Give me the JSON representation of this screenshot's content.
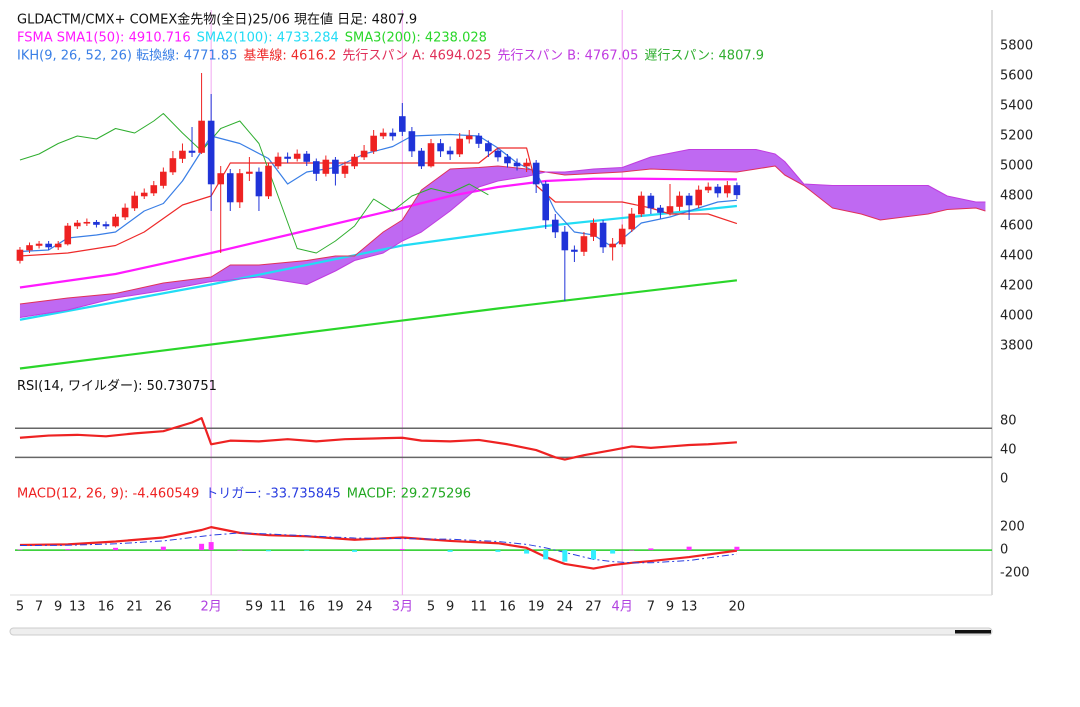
{
  "chart_data": [
    {
      "type": "candlestick",
      "title": "GLDACTM/CMX+ COMEX金先物(全日)25/06  現在値 日足: 4807.9",
      "xlim": [
        -1,
        102
      ],
      "ylim": [
        3600,
        6040
      ],
      "yticks": [
        3800,
        4000,
        4200,
        4400,
        4600,
        4800,
        5000,
        5200,
        5400,
        5600,
        5800
      ],
      "up_color": "#ee2222",
      "down_color": "#1f33d8",
      "vlines": [
        20,
        40,
        63
      ],
      "vline_color": "#f2a6f2",
      "cloud": {
        "between": [
          5,
          6
        ],
        "color": "#b44ff0"
      },
      "x": [
        0,
        1,
        2,
        3,
        4,
        5,
        6,
        7,
        8,
        9,
        10,
        11,
        12,
        13,
        14,
        15,
        16,
        17,
        18,
        19,
        20,
        21,
        22,
        23,
        24,
        25,
        26,
        27,
        28,
        29,
        30,
        31,
        32,
        33,
        34,
        35,
        36,
        37,
        38,
        39,
        40,
        41,
        42,
        43,
        44,
        45,
        46,
        47,
        48,
        49,
        50,
        51,
        52,
        53,
        54,
        55,
        56,
        57,
        58,
        59,
        60,
        61,
        62,
        63,
        64,
        65,
        66,
        67,
        68,
        69,
        70,
        71,
        72,
        73,
        74,
        75
      ],
      "open": [
        4370,
        4440,
        4470,
        4480,
        4460,
        4480,
        4600,
        4620,
        4625,
        4610,
        4600,
        4660,
        4720,
        4800,
        4820,
        4870,
        4960,
        5050,
        5100,
        5090,
        5300,
        4880,
        4950,
        4760,
        4950,
        4960,
        4800,
        5000,
        5060,
        5050,
        5080,
        5030,
        4950,
        5040,
        4950,
        5000,
        5060,
        5100,
        5200,
        5220,
        5330,
        5230,
        5100,
        5000,
        5150,
        5100,
        5080,
        5180,
        5200,
        5150,
        5100,
        5060,
        5020,
        5000,
        5020,
        4880,
        4640,
        4560,
        4440,
        4430,
        4530,
        4620,
        4460,
        4480,
        4580,
        4680,
        4800,
        4720,
        4690,
        4730,
        4800,
        4740,
        4840,
        4860,
        4820,
        4870
      ],
      "high": [
        4460,
        4490,
        4500,
        4500,
        4500,
        4620,
        4640,
        4650,
        4640,
        4630,
        4680,
        4750,
        4830,
        4850,
        4900,
        4990,
        5100,
        5150,
        5260,
        5620,
        5480,
        5000,
        4980,
        4980,
        5060,
        4990,
        5020,
        5090,
        5090,
        5110,
        5100,
        5050,
        5070,
        5060,
        5030,
        5080,
        5140,
        5240,
        5250,
        5250,
        5420,
        5260,
        5120,
        5180,
        5180,
        5130,
        5220,
        5240,
        5220,
        5170,
        5120,
        5080,
        5050,
        5050,
        5040,
        4900,
        4680,
        4600,
        4470,
        4560,
        4650,
        4640,
        4520,
        4610,
        4720,
        4830,
        4820,
        4740,
        4880,
        4830,
        4820,
        4870,
        4890,
        4880,
        4900,
        4890
      ],
      "low": [
        4350,
        4420,
        4450,
        4440,
        4440,
        4470,
        4580,
        4600,
        4590,
        4580,
        4590,
        4640,
        4700,
        4780,
        4800,
        4850,
        4940,
        5020,
        5060,
        5080,
        4700,
        4420,
        4700,
        4720,
        4900,
        4700,
        4780,
        4980,
        5020,
        5030,
        5000,
        4900,
        4930,
        4870,
        4920,
        4980,
        5040,
        5080,
        5180,
        5170,
        5200,
        5060,
        4980,
        4990,
        5060,
        5040,
        5060,
        5150,
        5120,
        5060,
        5030,
        4990,
        4970,
        4960,
        4820,
        4580,
        4520,
        4100,
        4360,
        4400,
        4500,
        4420,
        4370,
        4460,
        4560,
        4660,
        4680,
        4650,
        4670,
        4700,
        4640,
        4720,
        4820,
        4790,
        4790,
        4780
      ],
      "close": [
        4440,
        4470,
        4480,
        4460,
        4480,
        4600,
        4620,
        4625,
        4610,
        4600,
        4660,
        4720,
        4800,
        4820,
        4870,
        4960,
        5050,
        5100,
        5090,
        5300,
        4880,
        4950,
        4760,
        4950,
        4960,
        4800,
        5000,
        5060,
        5050,
        5080,
        5030,
        4950,
        5040,
        4950,
        5000,
        5060,
        5100,
        5200,
        5220,
        5200,
        5230,
        5100,
        5000,
        5150,
        5100,
        5080,
        5180,
        5200,
        5150,
        5100,
        5060,
        5020,
        5000,
        5020,
        4880,
        4640,
        4560,
        4440,
        4430,
        4530,
        4620,
        4460,
        4480,
        4580,
        4680,
        4800,
        4720,
        4690,
        4730,
        4800,
        4740,
        4840,
        4860,
        4820,
        4870,
        4807.9
      ],
      "series": [
        {
          "name": "FSMA SMA1(50): 4910.716",
          "color": "#ff1aff",
          "width": 2.2,
          "x": [
            0,
            10,
            20,
            30,
            40,
            45,
            50,
            55,
            60,
            65,
            70,
            75
          ],
          "values": [
            4190,
            4280,
            4420,
            4570,
            4720,
            4800,
            4860,
            4900,
            4915,
            4915,
            4912,
            4910.716
          ]
        },
        {
          "name": "SMA2(100): 4733.284",
          "color": "#22dcf5",
          "width": 2.2,
          "x": [
            0,
            20,
            40,
            55,
            75
          ],
          "values": [
            3975,
            4210,
            4470,
            4600,
            4733.284
          ]
        },
        {
          "name": "SMA3(200): 4238.028",
          "color": "#2ad62a",
          "width": 2.2,
          "x": [
            0,
            25,
            50,
            75
          ],
          "values": [
            3650,
            3850,
            4050,
            4238.028
          ]
        },
        {
          "name": "IKH(9, 26, 52, 26) 転換線: 4771.85",
          "color": "#3a7fe6",
          "width": 1.2,
          "x": [
            0,
            3,
            5,
            8,
            10,
            13,
            15,
            17,
            18,
            20,
            23,
            26,
            28,
            30,
            33,
            36,
            39,
            41,
            45,
            48,
            50,
            52,
            54,
            56,
            58,
            60,
            62,
            65,
            68,
            70,
            73,
            75
          ],
          "values": [
            4430,
            4440,
            4520,
            4540,
            4560,
            4700,
            4750,
            4900,
            5000,
            5200,
            5150,
            5050,
            4880,
            4960,
            4990,
            5080,
            5130,
            5200,
            5210,
            5200,
            5120,
            5020,
            4960,
            4700,
            4560,
            4540,
            4460,
            4620,
            4660,
            4700,
            4760,
            4771.85
          ]
        },
        {
          "name": "基準線: 4616.2",
          "color": "#ee2a2a",
          "width": 1.2,
          "x": [
            0,
            5,
            10,
            13,
            17,
            20,
            22,
            30,
            40,
            48,
            50,
            53,
            54,
            56,
            63,
            66,
            68,
            72,
            75
          ],
          "values": [
            4400,
            4420,
            4470,
            4560,
            4740,
            4800,
            5020,
            5020,
            5020,
            5020,
            5120,
            5120,
            4870,
            4760,
            4760,
            4720,
            4680,
            4680,
            4616.2
          ]
        },
        {
          "name": "先行スパン A: 4694.025",
          "color": "#e0305a",
          "width": 1,
          "x": [
            0,
            5,
            10,
            15,
            20,
            22,
            25,
            30,
            33,
            35,
            38,
            40,
            42,
            45,
            48,
            50,
            53,
            55,
            57,
            60,
            63,
            66,
            70,
            75,
            77,
            79,
            80,
            82,
            85,
            88,
            90,
            95,
            97,
            100,
            101
          ],
          "values": [
            4080,
            4120,
            4150,
            4220,
            4260,
            4340,
            4340,
            4370,
            4400,
            4400,
            4560,
            4640,
            4840,
            4980,
            4990,
            5000,
            4980,
            4960,
            4940,
            4950,
            4960,
            4980,
            4970,
            4960,
            4980,
            5000,
            4940,
            4870,
            4720,
            4680,
            4640,
            4680,
            4710,
            4720,
            4700
          ]
        },
        {
          "name": "先行スパン B: 4767.05",
          "color": "#c03ce0",
          "width": 1,
          "x": [
            0,
            5,
            10,
            15,
            20,
            22,
            25,
            30,
            33,
            35,
            38,
            40,
            42,
            45,
            48,
            50,
            53,
            55,
            57,
            60,
            63,
            66,
            70,
            75,
            77,
            79,
            80,
            82,
            85,
            88,
            90,
            95,
            97,
            100,
            101
          ],
          "values": [
            3990,
            4040,
            4120,
            4170,
            4230,
            4240,
            4260,
            4210,
            4300,
            4370,
            4420,
            4500,
            4560,
            4700,
            4860,
            4900,
            4930,
            4960,
            4960,
            4980,
            4990,
            5060,
            5110,
            5110,
            5110,
            5080,
            5030,
            4880,
            4870,
            4870,
            4870,
            4870,
            4800,
            4760,
            4760
          ]
        },
        {
          "name": "遅行スパン: 4807.9",
          "color": "#2fae2f",
          "width": 1,
          "x": [
            0,
            2,
            4,
            6,
            8,
            10,
            12,
            14,
            15,
            17,
            19,
            21,
            23,
            25,
            27,
            29,
            31,
            33,
            35,
            37,
            39,
            41,
            43,
            45,
            47,
            49
          ],
          "values": [
            5040,
            5080,
            5150,
            5200,
            5180,
            5250,
            5220,
            5300,
            5350,
            5220,
            5100,
            5250,
            5300,
            5150,
            4800,
            4450,
            4420,
            4500,
            4600,
            4780,
            4700,
            4800,
            4850,
            4820,
            4880,
            4807.9
          ]
        }
      ]
    },
    {
      "type": "line",
      "title": "RSI(14, ワイルダー): 50.730751",
      "xlim": [
        -1,
        102
      ],
      "ylim": [
        -15,
        140
      ],
      "yticks": [
        0,
        40,
        80
      ],
      "hlines": [
        70,
        30
      ],
      "hline_color": "#666666",
      "color": "#ee2222",
      "x": [
        0,
        3,
        6,
        9,
        12,
        15,
        18,
        19,
        20,
        22,
        25,
        28,
        31,
        34,
        37,
        40,
        42,
        45,
        48,
        51,
        54,
        56,
        57,
        59,
        62,
        64,
        66,
        68,
        70,
        72,
        75
      ],
      "values": [
        57,
        60,
        61,
        59,
        63,
        66,
        78,
        84,
        48,
        53,
        52,
        55,
        52,
        55,
        56,
        57,
        53,
        52,
        54,
        48,
        40,
        30,
        27,
        33,
        40,
        45,
        43,
        45,
        47,
        48,
        50.730751
      ]
    },
    {
      "type": "line",
      "xlim": [
        -1,
        102
      ],
      "ylim": [
        -390,
        540
      ],
      "yticks": [
        -200,
        0,
        200
      ],
      "hlines": [
        0
      ],
      "hline_color": "#22cc22",
      "xticks": [
        {
          "value": 0,
          "label": "5"
        },
        {
          "value": 2,
          "label": "7"
        },
        {
          "value": 4,
          "label": "9"
        },
        {
          "value": 6,
          "label": "13"
        },
        {
          "value": 9,
          "label": "16"
        },
        {
          "value": 12,
          "label": "21"
        },
        {
          "value": 15,
          "label": "26"
        },
        {
          "value": 20,
          "label": "2月",
          "color": "#b040e0"
        },
        {
          "value": 24,
          "label": "5"
        },
        {
          "value": 25,
          "label": "9"
        },
        {
          "value": 27,
          "label": "11"
        },
        {
          "value": 30,
          "label": "16"
        },
        {
          "value": 33,
          "label": "19"
        },
        {
          "value": 36,
          "label": "24"
        },
        {
          "value": 40,
          "label": "3月",
          "color": "#b040e0"
        },
        {
          "value": 43,
          "label": "5"
        },
        {
          "value": 45,
          "label": "9"
        },
        {
          "value": 48,
          "label": "11"
        },
        {
          "value": 51,
          "label": "16"
        },
        {
          "value": 54,
          "label": "19"
        },
        {
          "value": 57,
          "label": "24"
        },
        {
          "value": 60,
          "label": "27"
        },
        {
          "value": 63,
          "label": "4月",
          "color": "#b040e0"
        },
        {
          "value": 66,
          "label": "7"
        },
        {
          "value": 68,
          "label": "9"
        },
        {
          "value": 70,
          "label": "13"
        },
        {
          "value": 75,
          "label": "20"
        }
      ],
      "series": [
        {
          "name": "MACD(12, 26, 9): -4.460549",
          "color": "#ee2222",
          "width": 2.2,
          "x": [
            0,
            5,
            10,
            15,
            19,
            20,
            23,
            26,
            30,
            35,
            40,
            45,
            50,
            53,
            55,
            57,
            60,
            62,
            64,
            66,
            70,
            75
          ],
          "values": [
            45,
            50,
            75,
            110,
            175,
            200,
            150,
            130,
            120,
            90,
            110,
            80,
            60,
            20,
            -60,
            -120,
            -160,
            -130,
            -110,
            -95,
            -60,
            -4.460549
          ]
        },
        {
          "name": "トリガー: -33.735845",
          "color": "#2a3ee0",
          "width": 1,
          "style": "dashdot",
          "x": [
            0,
            5,
            10,
            15,
            19,
            20,
            23,
            26,
            30,
            35,
            40,
            45,
            50,
            53,
            55,
            57,
            60,
            62,
            64,
            66,
            70,
            75
          ],
          "values": [
            40,
            42,
            55,
            80,
            120,
            130,
            150,
            140,
            125,
            105,
            100,
            95,
            75,
            50,
            20,
            -20,
            -80,
            -100,
            -110,
            -110,
            -90,
            -33.735845
          ]
        },
        {
          "name": "MACDF: 29.275296",
          "color": "#22a822",
          "type": "bar",
          "pos_color": "#ff33ff",
          "neg_color": "#33eeff",
          "x": [
            0,
            5,
            10,
            15,
            19,
            20,
            23,
            26,
            30,
            35,
            40,
            45,
            50,
            53,
            55,
            57,
            60,
            62,
            64,
            66,
            70,
            75
          ],
          "values": [
            5,
            8,
            20,
            30,
            55,
            70,
            0,
            -10,
            -5,
            -15,
            10,
            -15,
            -15,
            -30,
            -80,
            -100,
            -80,
            -30,
            0,
            15,
            30,
            29.275296
          ]
        }
      ]
    }
  ]
}
